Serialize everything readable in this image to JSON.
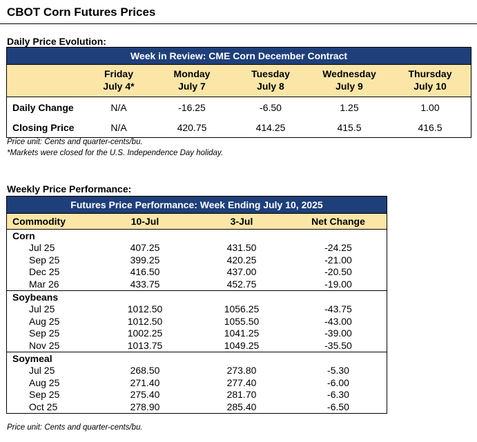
{
  "title": "CBOT Corn Futures Prices",
  "daily": {
    "section_label": "Daily Price Evolution:",
    "banner": "Week in Review: CME Corn December Contract",
    "days": [
      {
        "day": "Friday",
        "date": "July 4*"
      },
      {
        "day": "Monday",
        "date": "July 7"
      },
      {
        "day": "Tuesday",
        "date": "July 8"
      },
      {
        "day": "Wednesday",
        "date": "July 9"
      },
      {
        "day": "Thursday",
        "date": "July 10"
      }
    ],
    "rows": [
      {
        "label": "Daily Change",
        "values": [
          "N/A",
          "-16.25",
          "-6.50",
          "1.25",
          "1.00"
        ]
      },
      {
        "label": "Closing Price",
        "values": [
          "N/A",
          "420.75",
          "414.25",
          "415.5",
          "416.5"
        ]
      }
    ],
    "notes": [
      "Price unit: Cents and quarter-cents/bu.",
      "*Markets were closed for the U.S. Independence Day holiday."
    ]
  },
  "weekly": {
    "section_label": "Weekly Price Performance:",
    "banner": "Futures Price Performance: Week Ending July 10, 2025",
    "headers": [
      "Commodity",
      "10-Jul",
      "3-Jul",
      "Net Change"
    ],
    "groups": [
      {
        "name": "Corn",
        "rows": [
          [
            "Jul 25",
            "407.25",
            "431.50",
            "-24.25"
          ],
          [
            "Sep 25",
            "399.25",
            "420.25",
            "-21.00"
          ],
          [
            "Dec 25",
            "416.50",
            "437.00",
            "-20.50"
          ],
          [
            "Mar 26",
            "433.75",
            "452.75",
            "-19.00"
          ]
        ]
      },
      {
        "name": "Soybeans",
        "rows": [
          [
            "Jul 25",
            "1012.50",
            "1056.25",
            "-43.75"
          ],
          [
            "Aug 25",
            "1012.50",
            "1055.50",
            "-43.00"
          ],
          [
            "Sep 25",
            "1002.25",
            "1041.25",
            "-39.00"
          ],
          [
            "Nov 25",
            "1013.75",
            "1049.25",
            "-35.50"
          ]
        ]
      },
      {
        "name": "Soymeal",
        "rows": [
          [
            "Jul 25",
            "268.50",
            "273.80",
            "-5.30"
          ],
          [
            "Aug 25",
            "271.40",
            "277.40",
            "-6.00"
          ],
          [
            "Sep 25",
            "275.40",
            "281.70",
            "-6.30"
          ],
          [
            "Oct 25",
            "278.90",
            "285.40",
            "-6.50"
          ]
        ]
      }
    ],
    "note": "Price unit: Cents and quarter-cents/bu."
  },
  "colors": {
    "banner": "#1f3f7a",
    "header_fill": "#fbe6a8"
  }
}
